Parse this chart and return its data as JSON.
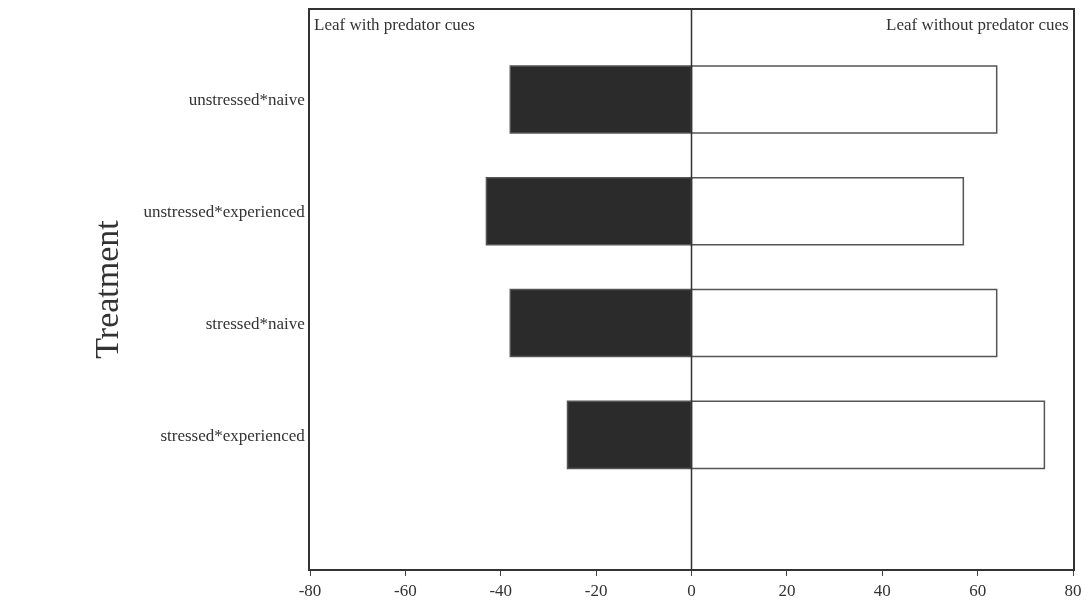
{
  "chart_data": {
    "type": "bar",
    "orientation": "horizontal",
    "stacked": true,
    "ylabel": "Treatment",
    "categories": [
      "unstressed*naive",
      "unstressed*experienced",
      "stressed*naive",
      "stressed*experienced"
    ],
    "series": [
      {
        "color": "#2b2b2b",
        "values": [
          -38,
          -43,
          -38,
          -26
        ]
      },
      {
        "color": "#ffffff",
        "values": [
          64,
          57,
          64,
          74
        ]
      }
    ],
    "xlim": [
      -80,
      80
    ],
    "xticks": [
      -80,
      -60,
      -40,
      -20,
      0,
      20,
      40,
      60,
      80
    ],
    "annotations": [
      "Leaf with predator cues",
      "Leaf without predator cues"
    ],
    "ref_lines": [
      {
        "axis": "x",
        "value": 0,
        "color": "#333333"
      }
    ],
    "legend": false
  }
}
